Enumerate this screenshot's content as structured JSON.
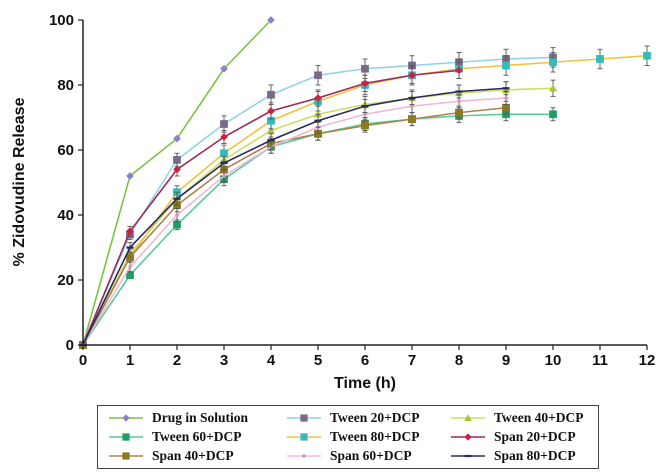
{
  "chart_data": {
    "type": "line",
    "title": "",
    "xlabel": "Time (h)",
    "ylabel": "% Zidovudine Release",
    "xlim": [
      0,
      12
    ],
    "ylim": [
      0,
      100
    ],
    "xticks": [
      0,
      1,
      2,
      3,
      4,
      5,
      6,
      7,
      8,
      9,
      10,
      11,
      12
    ],
    "yticks": [
      0,
      20,
      40,
      60,
      80,
      100
    ],
    "grid": false,
    "legend_position": "bottom",
    "series": [
      {
        "name": "Drug in Solution",
        "color": "#7cc243",
        "marker_color": "#8a7fd0",
        "marker": "diamond",
        "x": [
          0,
          1,
          2,
          3,
          4
        ],
        "y": [
          0,
          52,
          63.5,
          85,
          100
        ],
        "err": [
          0,
          0,
          0,
          0,
          0
        ]
      },
      {
        "name": "Tween 20+DCP",
        "color": "#8fd3e6",
        "marker_color": "#7a6a8a",
        "marker": "square",
        "x": [
          0,
          1,
          2,
          3,
          4,
          5,
          6,
          7,
          8,
          9,
          10
        ],
        "y": [
          0,
          34,
          57,
          68,
          77,
          83,
          85,
          86,
          87,
          88,
          88.5
        ],
        "err": [
          0,
          1.5,
          2,
          2.5,
          3,
          3,
          3,
          3,
          3,
          3,
          3
        ]
      },
      {
        "name": "Tween 40+DCP",
        "color": "#ccdd66",
        "marker_color": "#a8c43a",
        "marker": "triangle",
        "x": [
          0,
          1,
          2,
          3,
          4,
          5,
          6,
          7,
          8,
          9,
          10
        ],
        "y": [
          0,
          28,
          45,
          57,
          66,
          71,
          74,
          76,
          77.5,
          78.5,
          79
        ],
        "err": [
          0,
          1.5,
          2,
          2,
          2.5,
          2.5,
          2.5,
          2.5,
          2.5,
          2.5,
          2.5
        ]
      },
      {
        "name": "Tween 60+DCP",
        "color": "#55cc99",
        "marker_color": "#1e9e62",
        "marker": "square",
        "x": [
          0,
          1,
          2,
          3,
          4,
          5,
          6,
          7,
          8,
          9,
          10
        ],
        "y": [
          0,
          21.5,
          37,
          51,
          61,
          65,
          68,
          69.5,
          70.5,
          71,
          71
        ],
        "err": [
          0,
          1,
          1.5,
          2,
          2,
          2,
          2,
          2,
          2,
          2,
          2
        ]
      },
      {
        "name": "Tween 80+DCP",
        "color": "#f0c040",
        "marker_color": "#33bbbb",
        "marker": "square",
        "x": [
          0,
          1,
          2,
          3,
          4,
          5,
          6,
          7,
          8,
          9,
          10,
          11,
          12
        ],
        "y": [
          0,
          27,
          47,
          59,
          69,
          75,
          80,
          83,
          85,
          86,
          87,
          88,
          89
        ],
        "err": [
          0,
          1.5,
          2,
          2.5,
          2.5,
          3,
          3,
          3,
          3,
          3,
          3,
          3,
          3
        ]
      },
      {
        "name": "Span 20+DCP",
        "color": "#9a2a5a",
        "marker_color": "#cc2244",
        "marker": "diamond",
        "x": [
          0,
          1,
          2,
          3,
          4,
          5,
          6,
          7,
          8
        ],
        "y": [
          0,
          35,
          54,
          64,
          72,
          76,
          80.5,
          83,
          84.5
        ],
        "err": [
          0,
          1.5,
          2,
          2,
          2.5,
          2.5,
          2.5,
          2.5,
          2.5
        ]
      },
      {
        "name": "Span 40+DCP",
        "color": "#b08050",
        "marker_color": "#8a7a20",
        "marker": "square",
        "x": [
          0,
          1,
          2,
          3,
          4,
          5,
          6,
          7,
          8,
          9
        ],
        "y": [
          0,
          27,
          43,
          54,
          62,
          65,
          67.5,
          69.5,
          71.5,
          73
        ],
        "err": [
          0,
          1.5,
          2,
          2,
          2,
          2,
          2,
          2,
          2,
          2
        ]
      },
      {
        "name": "Span 60+DCP",
        "color": "#f0b8d8",
        "marker_color": "#e090c0",
        "marker": "dot",
        "x": [
          0,
          1,
          2,
          3,
          4,
          5,
          6,
          7,
          8,
          9
        ],
        "y": [
          0,
          24,
          40,
          52,
          61,
          67,
          71,
          73.5,
          75,
          76
        ],
        "err": [
          0,
          1.5,
          2,
          2,
          2,
          2,
          2,
          2,
          2,
          2
        ]
      },
      {
        "name": "Span 80+DCP",
        "color": "#2a2a5a",
        "marker_color": "#2a2a5a",
        "marker": "dash",
        "x": [
          0,
          1,
          2,
          3,
          4,
          5,
          6,
          7,
          8,
          9
        ],
        "y": [
          0,
          30,
          45,
          56,
          63,
          69,
          73.5,
          76,
          78,
          79
        ],
        "err": [
          0,
          1.5,
          2,
          2,
          2,
          2,
          2,
          2,
          2,
          2
        ]
      }
    ]
  }
}
